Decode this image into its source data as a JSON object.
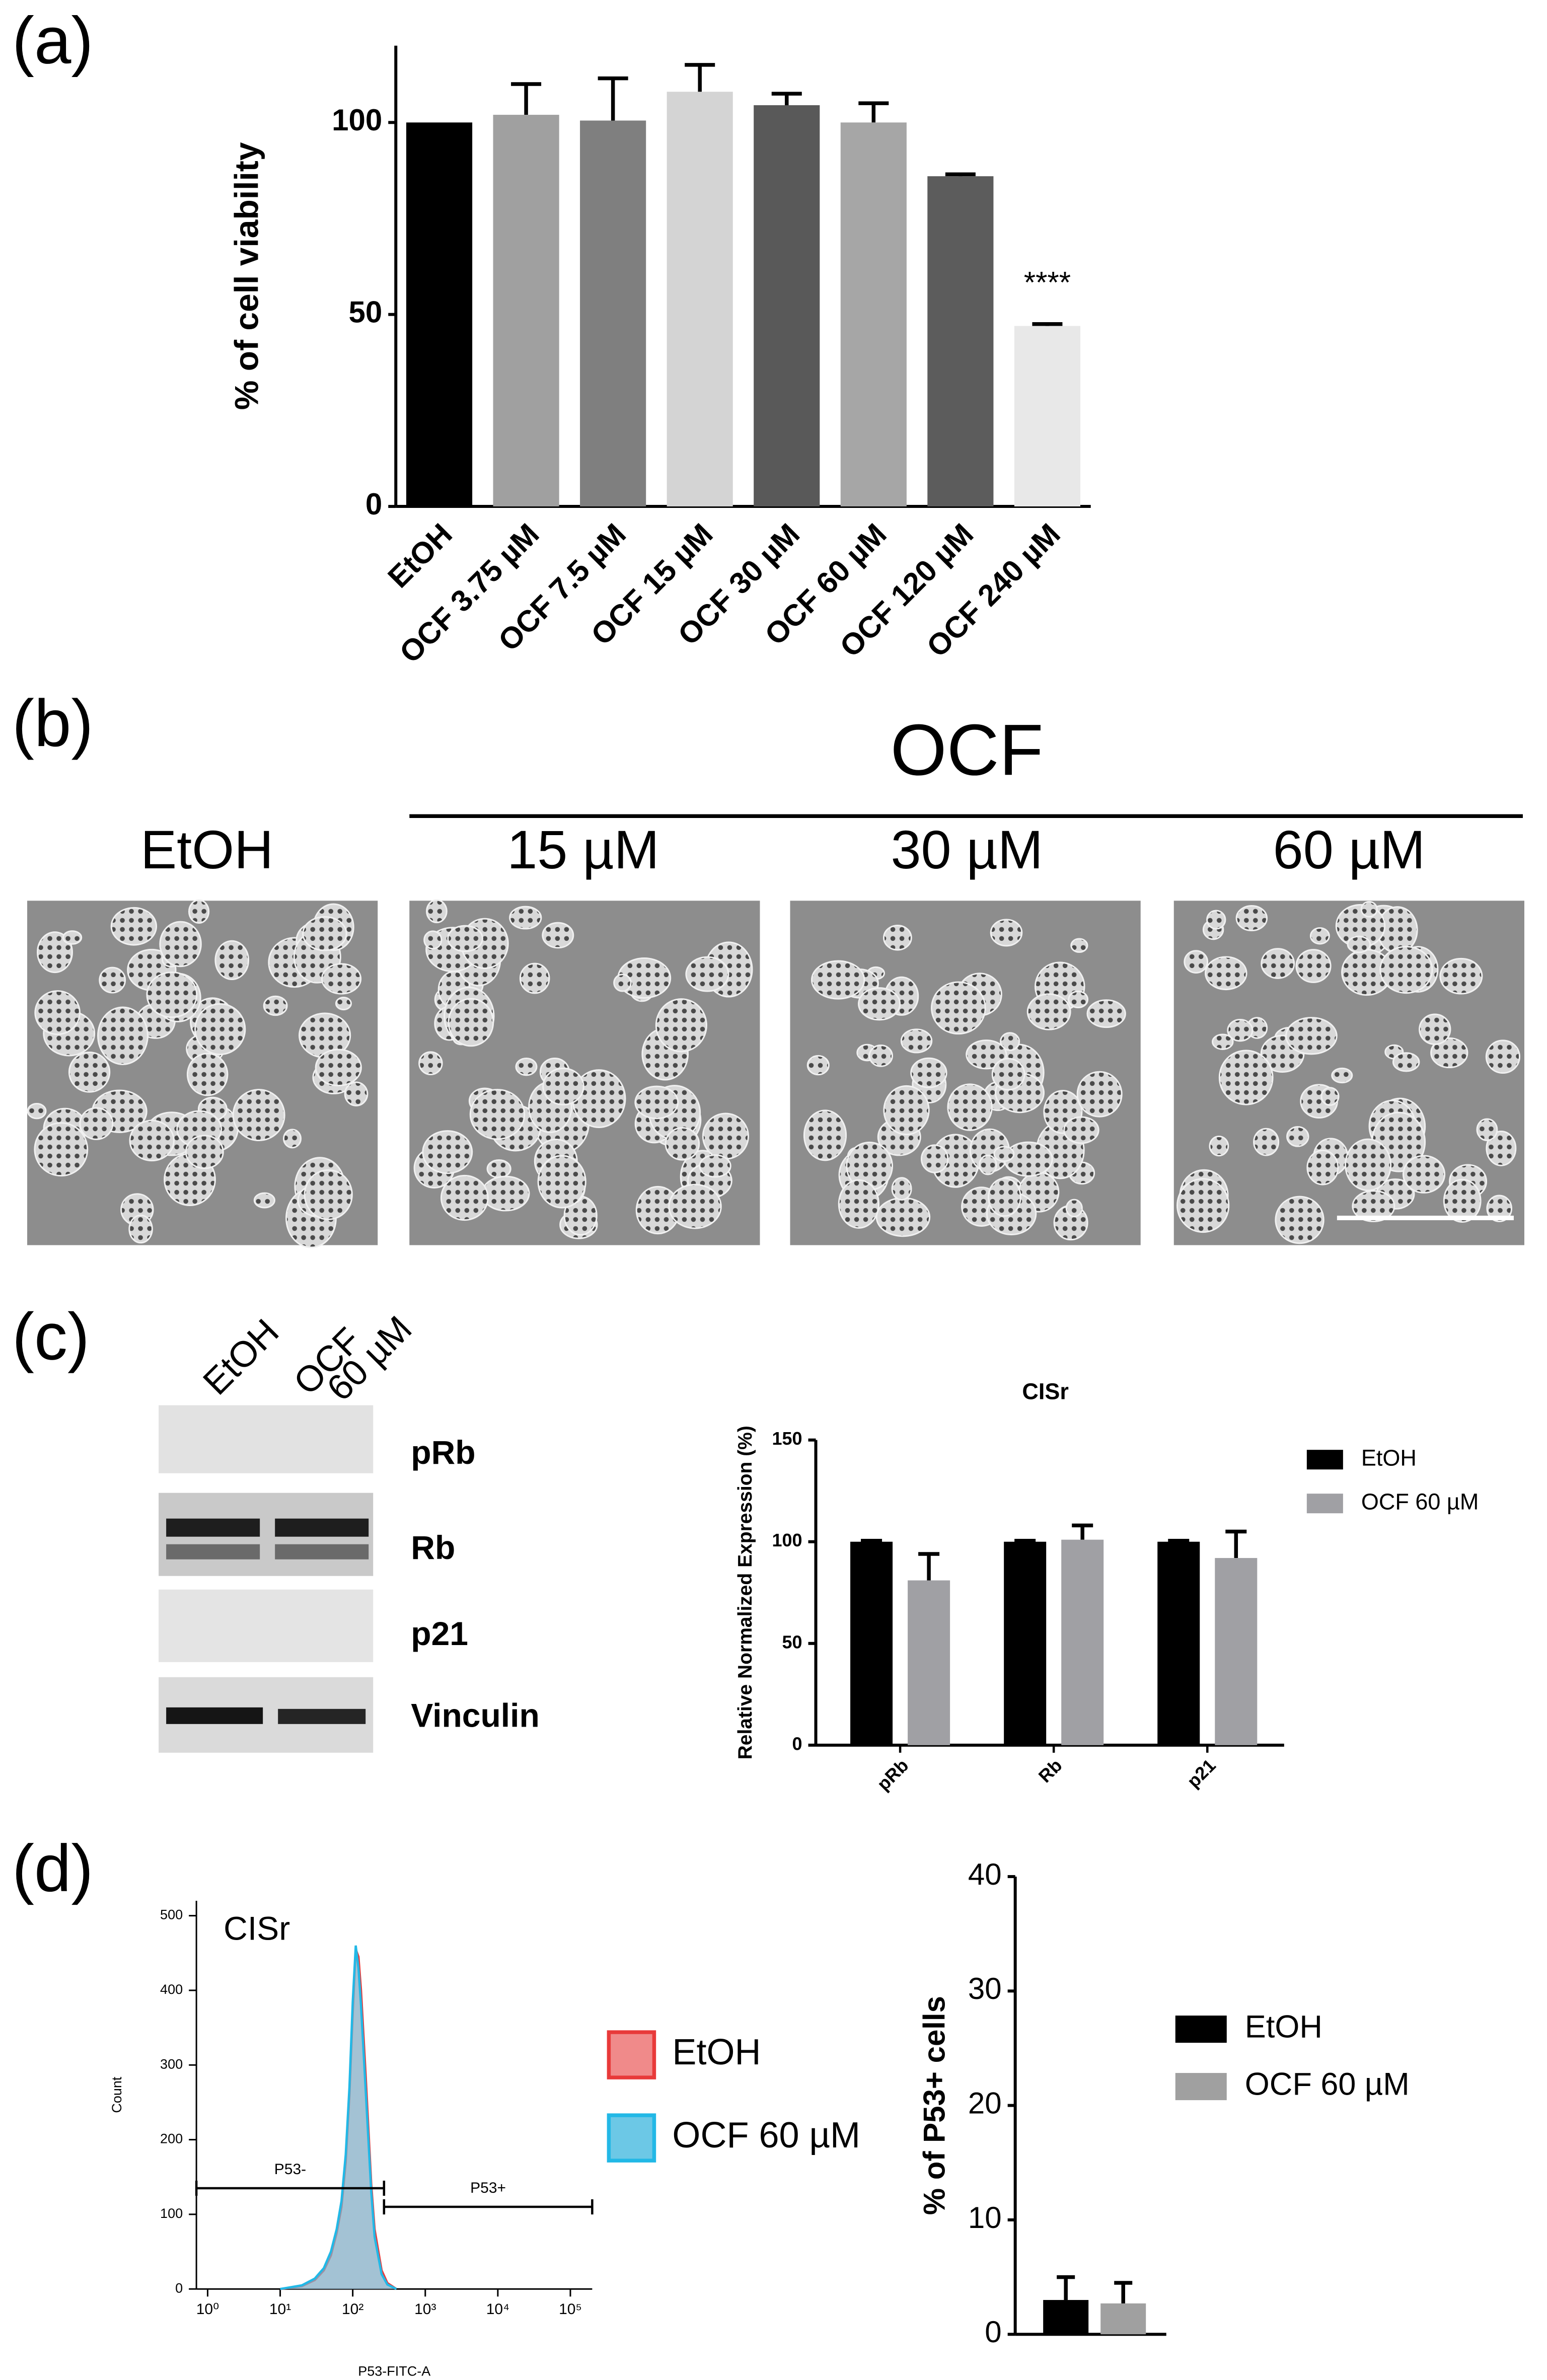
{
  "panel_labels": [
    "(a)",
    "(b)",
    "(c)",
    "(d)"
  ],
  "microscopy": {
    "group": "OCF",
    "labels": [
      "EtOH",
      "15 µM",
      "30 µM",
      "60 µM"
    ]
  },
  "western_blot": {
    "lanes": [
      {
        "lines": [
          "EtOH"
        ]
      },
      {
        "lines": [
          "OCF",
          "60 µM"
        ]
      }
    ],
    "bands": [
      "pRb",
      "Rb",
      "p21",
      "Vinculin"
    ]
  },
  "chart_data": [
    {
      "type": "bar",
      "ylabel": "% of cell viability",
      "categories": [
        "EtOH",
        "OCF 3.75 µM",
        "OCF 7.5 µM",
        "OCF 15 µM",
        "OCF 30 µM",
        "OCF 60 µM",
        "OCF 120 µM",
        "OCF 240 µM"
      ],
      "values": [
        100,
        102,
        100.5,
        108,
        104.5,
        100,
        86,
        47
      ],
      "errors": [
        null,
        8,
        11,
        7,
        3,
        5,
        0.5,
        0.5
      ],
      "colors": [
        "#000000",
        "#a0a0a0",
        "#7f7f7f",
        "#d4d4d4",
        "#595959",
        "#a6a6a6",
        "#5c5c5c",
        "#e8e8e8"
      ],
      "annotation": "****",
      "ylim": [
        0,
        120
      ],
      "yticks": [
        0,
        50,
        100
      ]
    },
    {
      "type": "grouped-bar",
      "title": "CISr",
      "ylabel": "Relative Normalized Expression (%)",
      "categories": [
        "pRb",
        "Rb",
        "p21"
      ],
      "series": [
        {
          "name": "EtOH",
          "color": "#000000",
          "values": [
            100,
            100,
            100
          ],
          "errors": [
            0.5,
            0.5,
            0.5
          ]
        },
        {
          "name": "OCF 60 µM",
          "color": "#a0a0a4",
          "values": [
            81,
            101,
            92
          ],
          "errors": [
            13,
            7,
            13
          ]
        }
      ],
      "ylim": [
        0,
        150
      ],
      "yticks": [
        0,
        50,
        100,
        150
      ],
      "legend": "right"
    },
    {
      "type": "area",
      "title": "CISr",
      "xlabel": "P53-FITC-A",
      "ylabel": "Count",
      "xscale": "log",
      "x": [
        10,
        20,
        30,
        40,
        50,
        60,
        70,
        80,
        90,
        100,
        110,
        120,
        130,
        150,
        180,
        200,
        250,
        300,
        400
      ],
      "series": [
        {
          "name": "EtOH",
          "color": "#e83a3a",
          "fill": "#f08a8a",
          "values": [
            0,
            4,
            12,
            25,
            45,
            75,
            110,
            170,
            260,
            370,
            455,
            445,
            400,
            290,
            140,
            80,
            25,
            8,
            0
          ]
        },
        {
          "name": "OCF 60 µM",
          "color": "#22b8e6",
          "fill": "#6cc8e6",
          "values": [
            0,
            5,
            14,
            28,
            50,
            80,
            118,
            180,
            270,
            385,
            460,
            430,
            380,
            270,
            130,
            70,
            20,
            6,
            0
          ]
        }
      ],
      "gates": [
        {
          "name": "P53-",
          "x": [
            0.7,
            270
          ],
          "y": 135
        },
        {
          "name": "P53+",
          "x": [
            270,
            200000
          ],
          "y": 110
        }
      ],
      "xlim": [
        0.7,
        200000
      ],
      "xticks": [
        {
          "value": 1,
          "label": "10⁰"
        },
        {
          "value": 10,
          "label": "10¹"
        },
        {
          "value": 100,
          "label": "10²"
        },
        {
          "value": 1000,
          "label": "10³"
        },
        {
          "value": 10000,
          "label": "10⁴"
        },
        {
          "value": 100000,
          "label": "10⁵"
        }
      ],
      "ylim": [
        0,
        520
      ],
      "yticks": [
        0,
        100,
        200,
        300,
        400,
        500
      ],
      "legend": "right"
    },
    {
      "type": "grouped-bar",
      "ylabel": "% of P53+ cells",
      "categories": [
        null
      ],
      "series": [
        {
          "name": "EtOH",
          "color": "#000000",
          "values": [
            3
          ],
          "errors": [
            2
          ]
        },
        {
          "name": "OCF 60 µM",
          "color": "#a0a0a0",
          "values": [
            2.7
          ],
          "errors": [
            1.8
          ]
        }
      ],
      "ylim": [
        0,
        40
      ],
      "yticks": [
        0,
        10,
        20,
        30,
        40
      ],
      "legend": "right"
    }
  ]
}
